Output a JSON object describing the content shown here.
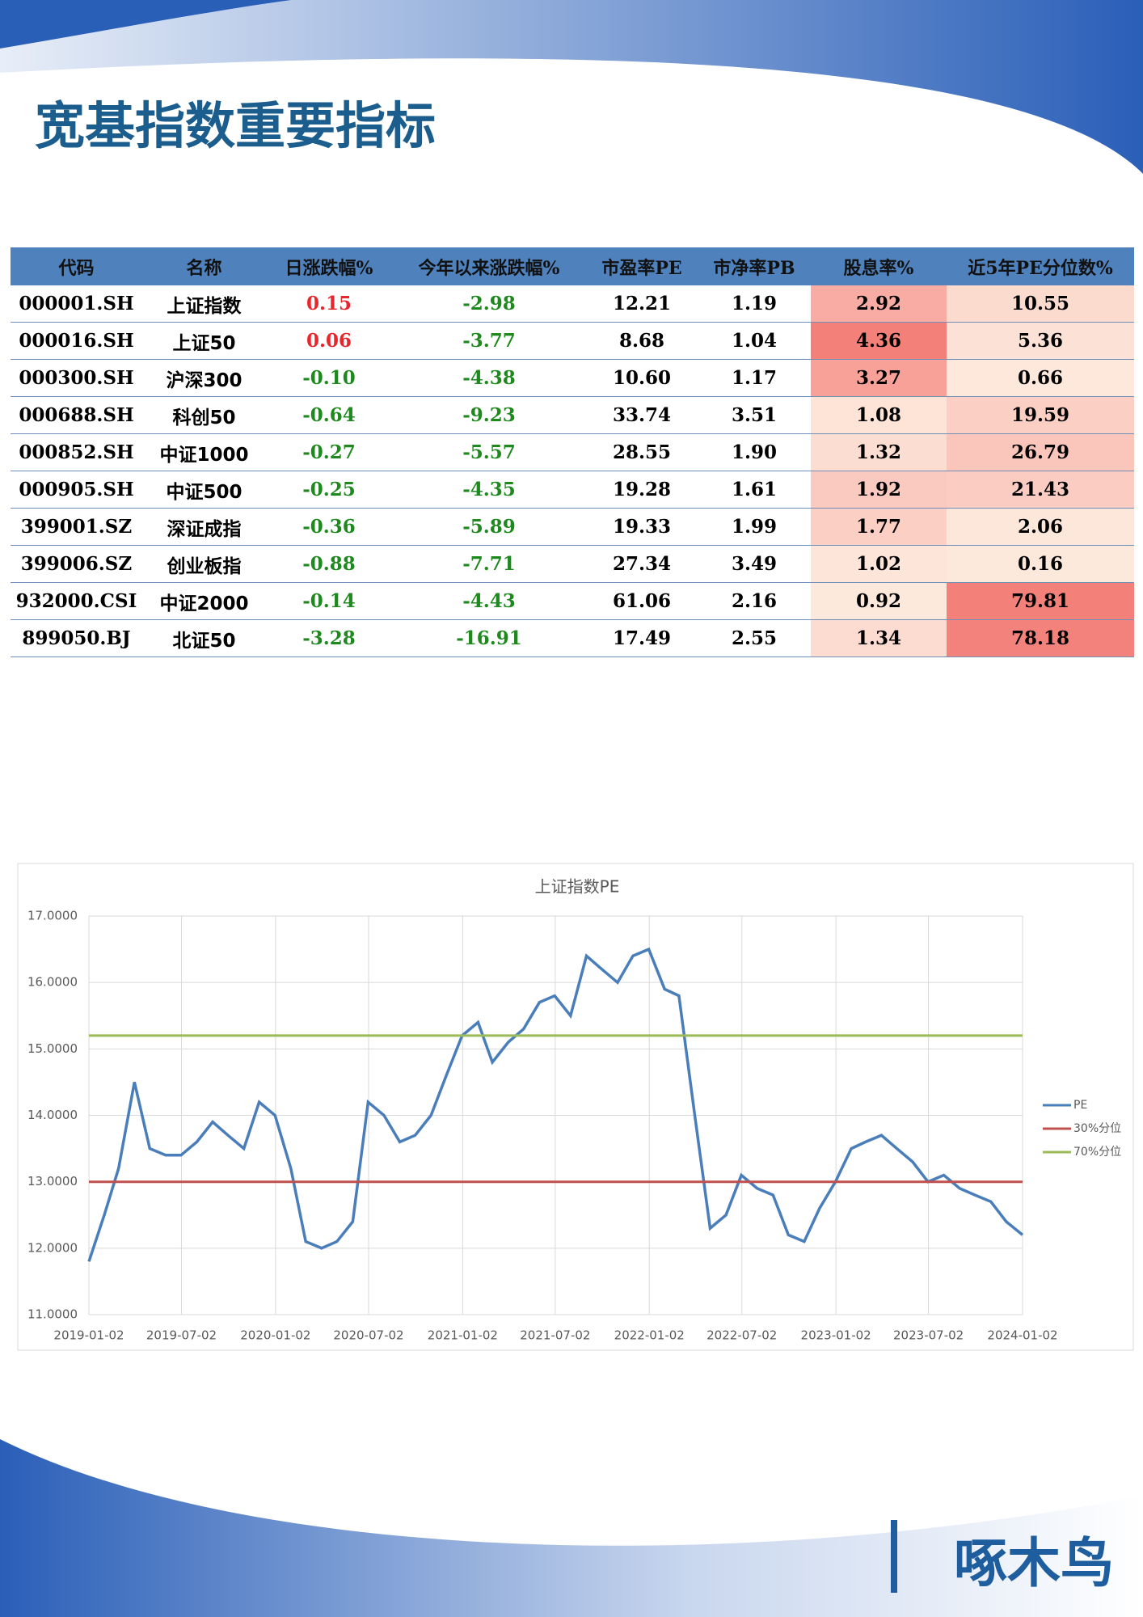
{
  "header": {
    "title": "宽基指数重要指标"
  },
  "table": {
    "columns": [
      "代码",
      "名称",
      "日涨跌幅%",
      "今年以来涨跌幅%",
      "市盈率PE",
      "市净率PB",
      "股息率%",
      "近5年PE分位数%"
    ],
    "rows": [
      [
        "000001.SH",
        "上证指数",
        "0.15",
        "-2.98",
        "12.21",
        "1.19",
        "2.92",
        "10.55"
      ],
      [
        "000016.SH",
        "上证50",
        "0.06",
        "-3.77",
        "8.68",
        "1.04",
        "4.36",
        "5.36"
      ],
      [
        "000300.SH",
        "沪深300",
        "-0.10",
        "-4.38",
        "10.60",
        "1.17",
        "3.27",
        "0.66"
      ],
      [
        "000688.SH",
        "科创50",
        "-0.64",
        "-9.23",
        "33.74",
        "3.51",
        "1.08",
        "19.59"
      ],
      [
        "000852.SH",
        "中证1000",
        "-0.27",
        "-5.57",
        "28.55",
        "1.90",
        "1.32",
        "26.79"
      ],
      [
        "000905.SH",
        "中证500",
        "-0.25",
        "-4.35",
        "19.28",
        "1.61",
        "1.92",
        "21.43"
      ],
      [
        "399001.SZ",
        "深证成指",
        "-0.36",
        "-5.89",
        "19.33",
        "1.99",
        "1.77",
        "2.06"
      ],
      [
        "399006.SZ",
        "创业板指",
        "-0.88",
        "-7.71",
        "27.34",
        "3.49",
        "1.02",
        "0.16"
      ],
      [
        "932000.CSI",
        "中证2000",
        "-0.14",
        "-4.43",
        "61.06",
        "2.16",
        "0.92",
        "79.81"
      ],
      [
        "899050.BJ",
        "北证50",
        "-3.28",
        "-16.91",
        "17.49",
        "2.55",
        "1.34",
        "78.18"
      ]
    ]
  },
  "chart_data": {
    "type": "line",
    "title": "上证指数PE",
    "xlim": [
      "2019-01-02",
      "2024-01-02"
    ],
    "xticks": [
      "2019-01-02",
      "2019-07-02",
      "2020-01-02",
      "2020-07-02",
      "2021-01-02",
      "2021-07-02",
      "2022-01-02",
      "2022-07-02",
      "2023-01-02",
      "2023-07-02",
      "2024-01-02"
    ],
    "ylim": [
      11,
      17
    ],
    "yticks": [
      {
        "value": 11,
        "label": "11.0000"
      },
      {
        "value": 12,
        "label": "12.0000"
      },
      {
        "value": 13,
        "label": "13.0000"
      },
      {
        "value": 14,
        "label": "14.0000"
      },
      {
        "value": 15,
        "label": "15.0000"
      },
      {
        "value": 16,
        "label": "16.0000"
      },
      {
        "value": 17,
        "label": "17.0000"
      }
    ],
    "grid": true,
    "legend": "right",
    "series": [
      {
        "name": "PE",
        "color": "#4a7ebb",
        "x": [
          "2019-01-02",
          "2019-02-01",
          "2019-03-01",
          "2019-04-01",
          "2019-05-01",
          "2019-06-01",
          "2019-07-01",
          "2019-08-01",
          "2019-09-01",
          "2019-10-01",
          "2019-11-01",
          "2019-12-01",
          "2020-01-01",
          "2020-02-01",
          "2020-03-01",
          "2020-04-01",
          "2020-05-01",
          "2020-06-01",
          "2020-07-01",
          "2020-08-01",
          "2020-09-01",
          "2020-10-01",
          "2020-11-01",
          "2020-12-01",
          "2021-01-01",
          "2021-02-01",
          "2021-03-01",
          "2021-04-01",
          "2021-05-01",
          "2021-06-01",
          "2021-07-01",
          "2021-08-01",
          "2021-09-01",
          "2021-10-01",
          "2021-11-01",
          "2021-12-01",
          "2022-01-01",
          "2022-02-01",
          "2022-03-01",
          "2022-04-01",
          "2022-05-01",
          "2022-06-01",
          "2022-07-01",
          "2022-08-01",
          "2022-09-01",
          "2022-10-01",
          "2022-11-01",
          "2022-12-01",
          "2023-01-01",
          "2023-02-01",
          "2023-03-01",
          "2023-04-01",
          "2023-05-01",
          "2023-06-01",
          "2023-07-01",
          "2023-08-01",
          "2023-09-01",
          "2023-10-01",
          "2023-11-01",
          "2023-12-01",
          "2024-01-02"
        ],
        "values": [
          11.8,
          12.5,
          13.2,
          14.5,
          13.5,
          13.4,
          13.4,
          13.6,
          13.9,
          13.7,
          13.5,
          14.2,
          14.0,
          13.2,
          12.1,
          12.0,
          12.1,
          12.4,
          14.2,
          14.0,
          13.6,
          13.7,
          14.0,
          14.6,
          15.2,
          15.4,
          14.8,
          15.1,
          15.3,
          15.7,
          15.8,
          15.5,
          16.4,
          16.2,
          16.0,
          16.4,
          16.5,
          15.9,
          15.8,
          14.0,
          12.3,
          12.5,
          13.1,
          12.9,
          12.8,
          12.2,
          12.1,
          12.6,
          13.0,
          13.5,
          13.6,
          13.7,
          13.5,
          13.3,
          13.0,
          13.1,
          12.9,
          12.8,
          12.7,
          12.4,
          12.2
        ]
      },
      {
        "name": "30%分位",
        "color": "#c0504d",
        "x": [
          "2019-01-02",
          "2024-01-02"
        ],
        "values": [
          13.0,
          13.0
        ]
      },
      {
        "name": "70%分位",
        "color": "#9bbb59",
        "x": [
          "2019-01-02",
          "2024-01-02"
        ],
        "values": [
          15.2,
          15.2
        ]
      }
    ]
  },
  "logo": "啄木鸟"
}
